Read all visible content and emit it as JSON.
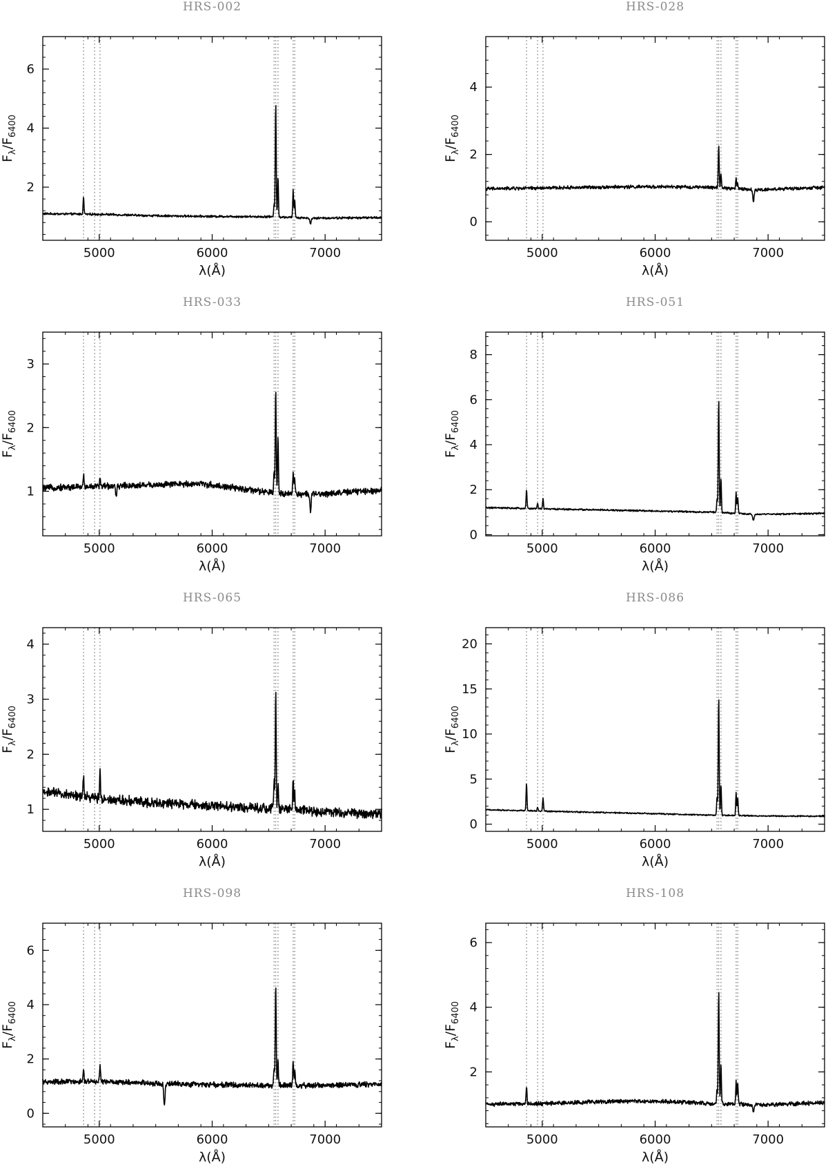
{
  "figure": {
    "description_lines": [
      4861,
      4959,
      5007,
      6548,
      6563,
      6583,
      6717,
      6731
    ],
    "line_color": "#000000",
    "marker_color": "#888888"
  },
  "chart_data": [
    {
      "type": "line",
      "title": "HRS-002",
      "xlabel": "λ(Å)",
      "ylabel": "Fλ/F6400",
      "xlim": [
        4500,
        7500
      ],
      "ylim": [
        0.2,
        7.1
      ],
      "xticks": [
        5000,
        6000,
        7000
      ],
      "yticks": [
        2,
        4,
        6
      ],
      "continuum": [
        [
          4500,
          1.1
        ],
        [
          5000,
          1.08
        ],
        [
          5500,
          1.03
        ],
        [
          6000,
          1.01
        ],
        [
          6500,
          1.0
        ],
        [
          6900,
          0.95
        ],
        [
          7500,
          0.97
        ]
      ],
      "noise": 0.03,
      "emission_lines": [
        {
          "x": 4861,
          "peak": 1.65
        },
        {
          "x": 6548,
          "peak": 1.45
        },
        {
          "x": 6563,
          "peak": 4.9
        },
        {
          "x": 6583,
          "peak": 2.35
        },
        {
          "x": 6717,
          "peak": 1.9
        },
        {
          "x": 6731,
          "peak": 1.55
        }
      ],
      "absorption_features": [
        {
          "x": 6870,
          "depth": 0.75
        }
      ]
    },
    {
      "type": "line",
      "title": "HRS-028",
      "xlabel": "λ(Å)",
      "ylabel": "Fλ/F6400",
      "xlim": [
        4500,
        7500
      ],
      "ylim": [
        -0.55,
        5.5
      ],
      "xticks": [
        5000,
        6000,
        7000
      ],
      "yticks": [
        0,
        2,
        4
      ],
      "continuum": [
        [
          4500,
          0.98
        ],
        [
          5000,
          1.0
        ],
        [
          5500,
          1.03
        ],
        [
          6000,
          1.04
        ],
        [
          6500,
          1.02
        ],
        [
          6900,
          0.95
        ],
        [
          7500,
          1.02
        ]
      ],
      "noise": 0.04,
      "emission_lines": [
        {
          "x": 6563,
          "peak": 2.25
        },
        {
          "x": 6583,
          "peak": 1.45
        },
        {
          "x": 6717,
          "peak": 1.3
        },
        {
          "x": 6731,
          "peak": 1.15
        }
      ],
      "absorption_features": [
        {
          "x": 6870,
          "depth": 0.6
        }
      ]
    },
    {
      "type": "line",
      "title": "HRS-033",
      "xlabel": "λ(Å)",
      "ylabel": "Fλ/F6400",
      "xlim": [
        4500,
        7500
      ],
      "ylim": [
        0.3,
        3.5
      ],
      "xticks": [
        5000,
        6000,
        7000
      ],
      "yticks": [
        1,
        2,
        3
      ],
      "continuum": [
        [
          4500,
          1.05
        ],
        [
          5000,
          1.08
        ],
        [
          5500,
          1.1
        ],
        [
          5900,
          1.12
        ],
        [
          6500,
          0.98
        ],
        [
          6900,
          0.95
        ],
        [
          7500,
          1.02
        ]
      ],
      "noise": 0.04,
      "emission_lines": [
        {
          "x": 4861,
          "peak": 1.25
        },
        {
          "x": 5007,
          "peak": 1.2
        },
        {
          "x": 6548,
          "peak": 1.3
        },
        {
          "x": 6563,
          "peak": 2.6
        },
        {
          "x": 6583,
          "peak": 1.85
        },
        {
          "x": 6717,
          "peak": 1.32
        },
        {
          "x": 6731,
          "peak": 1.2
        }
      ],
      "absorption_features": [
        {
          "x": 6870,
          "depth": 0.7
        },
        {
          "x": 5150,
          "depth": 0.9
        }
      ]
    },
    {
      "type": "line",
      "title": "HRS-051",
      "xlabel": "λ(Å)",
      "ylabel": "Fλ/F6400",
      "xlim": [
        4500,
        7500
      ],
      "ylim": [
        -0.05,
        9.0
      ],
      "xticks": [
        5000,
        6000,
        7000
      ],
      "yticks": [
        0,
        2,
        4,
        6,
        8
      ],
      "continuum": [
        [
          4500,
          1.2
        ],
        [
          5000,
          1.15
        ],
        [
          5500,
          1.1
        ],
        [
          6000,
          1.05
        ],
        [
          6500,
          1.0
        ],
        [
          6900,
          0.9
        ],
        [
          7500,
          0.95
        ]
      ],
      "noise": 0.03,
      "emission_lines": [
        {
          "x": 4861,
          "peak": 2.0
        },
        {
          "x": 4959,
          "peak": 1.4
        },
        {
          "x": 5007,
          "peak": 1.6
        },
        {
          "x": 6548,
          "peak": 1.6
        },
        {
          "x": 6563,
          "peak": 6.1
        },
        {
          "x": 6583,
          "peak": 2.5
        },
        {
          "x": 6717,
          "peak": 1.9
        },
        {
          "x": 6731,
          "peak": 1.7
        }
      ],
      "absorption_features": [
        {
          "x": 6870,
          "depth": 0.65
        }
      ]
    },
    {
      "type": "line",
      "title": "HRS-065",
      "xlabel": "λ(Å)",
      "ylabel": "Fλ/F6400",
      "xlim": [
        4500,
        7500
      ],
      "ylim": [
        0.6,
        4.3
      ],
      "xticks": [
        5000,
        6000,
        7000
      ],
      "yticks": [
        1,
        2,
        3,
        4
      ],
      "continuum": [
        [
          4500,
          1.32
        ],
        [
          5000,
          1.2
        ],
        [
          5500,
          1.12
        ],
        [
          6000,
          1.06
        ],
        [
          6500,
          1.02
        ],
        [
          7000,
          0.95
        ],
        [
          7500,
          0.92
        ]
      ],
      "noise": 0.07,
      "emission_lines": [
        {
          "x": 4861,
          "peak": 1.6
        },
        {
          "x": 5007,
          "peak": 1.72
        },
        {
          "x": 6548,
          "peak": 1.5
        },
        {
          "x": 6563,
          "peak": 3.15
        },
        {
          "x": 6583,
          "peak": 1.45
        },
        {
          "x": 6717,
          "peak": 1.55
        },
        {
          "x": 6731,
          "peak": 1.3
        }
      ],
      "absorption_features": []
    },
    {
      "type": "line",
      "title": "HRS-086",
      "xlabel": "λ(Å)",
      "ylabel": "Fλ/F6400",
      "xlim": [
        4500,
        7500
      ],
      "ylim": [
        -0.8,
        21.8
      ],
      "xticks": [
        5000,
        6000,
        7000
      ],
      "yticks": [
        0,
        5,
        10,
        15,
        20
      ],
      "continuum": [
        [
          4500,
          1.6
        ],
        [
          5000,
          1.45
        ],
        [
          5500,
          1.3
        ],
        [
          6000,
          1.15
        ],
        [
          6500,
          1.0
        ],
        [
          7000,
          0.9
        ],
        [
          7500,
          0.88
        ]
      ],
      "noise": 0.06,
      "emission_lines": [
        {
          "x": 4861,
          "peak": 4.5
        },
        {
          "x": 4959,
          "peak": 1.9
        },
        {
          "x": 5007,
          "peak": 2.9
        },
        {
          "x": 6548,
          "peak": 3.0
        },
        {
          "x": 6563,
          "peak": 14.2
        },
        {
          "x": 6583,
          "peak": 4.4
        },
        {
          "x": 6717,
          "peak": 3.5
        },
        {
          "x": 6731,
          "peak": 2.9
        }
      ],
      "absorption_features": []
    },
    {
      "type": "line",
      "title": "HRS-098",
      "xlabel": "λ(Å)",
      "ylabel": "Fλ/F6400",
      "xlim": [
        4500,
        7500
      ],
      "ylim": [
        -0.5,
        7.0
      ],
      "xticks": [
        5000,
        6000,
        7000
      ],
      "yticks": [
        0,
        2,
        4,
        6
      ],
      "continuum": [
        [
          4500,
          1.15
        ],
        [
          5000,
          1.17
        ],
        [
          5500,
          1.1
        ],
        [
          6000,
          1.05
        ],
        [
          6500,
          1.03
        ],
        [
          7000,
          1.02
        ],
        [
          7500,
          1.07
        ]
      ],
      "noise": 0.08,
      "emission_lines": [
        {
          "x": 4861,
          "peak": 1.6
        },
        {
          "x": 5007,
          "peak": 1.8
        },
        {
          "x": 6548,
          "peak": 1.7
        },
        {
          "x": 6563,
          "peak": 4.8
        },
        {
          "x": 6583,
          "peak": 1.9
        },
        {
          "x": 6717,
          "peak": 1.95
        },
        {
          "x": 6731,
          "peak": 1.6
        }
      ],
      "absorption_features": [
        {
          "x": 5577,
          "depth": 0.3
        }
      ]
    },
    {
      "type": "line",
      "title": "HRS-108",
      "xlabel": "λ(Å)",
      "ylabel": "Fλ/F6400",
      "xlim": [
        4500,
        7500
      ],
      "ylim": [
        0.3,
        6.6
      ],
      "xticks": [
        5000,
        6000,
        7000
      ],
      "yticks": [
        2,
        4,
        6
      ],
      "continuum": [
        [
          4500,
          1.0
        ],
        [
          5000,
          1.02
        ],
        [
          5500,
          1.08
        ],
        [
          6000,
          1.1
        ],
        [
          6500,
          1.02
        ],
        [
          7000,
          0.98
        ],
        [
          7500,
          1.05
        ]
      ],
      "noise": 0.05,
      "emission_lines": [
        {
          "x": 4861,
          "peak": 1.55
        },
        {
          "x": 6548,
          "peak": 1.5
        },
        {
          "x": 6563,
          "peak": 4.55
        },
        {
          "x": 6583,
          "peak": 2.25
        },
        {
          "x": 6717,
          "peak": 1.7
        },
        {
          "x": 6731,
          "peak": 1.65
        }
      ],
      "absorption_features": [
        {
          "x": 6870,
          "depth": 0.75
        }
      ]
    }
  ]
}
